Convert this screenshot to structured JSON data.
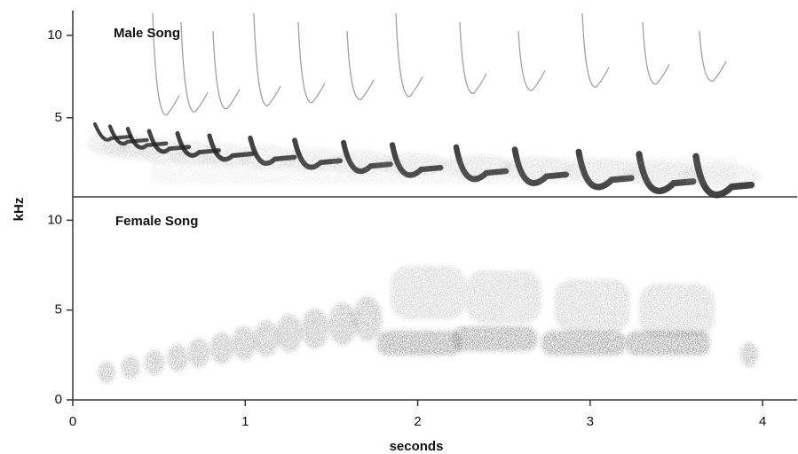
{
  "chart_data": [
    {
      "type": "spectrogram",
      "title": "Male Song",
      "ylabel": "kHz",
      "xlim": [
        0,
        4.2
      ],
      "ylim": [
        0.2,
        11.5
      ],
      "yticks": [
        5,
        10
      ]
    },
    {
      "type": "spectrogram",
      "title": "Female Song",
      "xlabel": "seconds",
      "xlim": [
        0,
        4.2
      ],
      "xticks": [
        0,
        1,
        2,
        3,
        4
      ],
      "ylim": [
        0,
        11.3
      ],
      "yticks": [
        0,
        5,
        10
      ]
    }
  ]
}
